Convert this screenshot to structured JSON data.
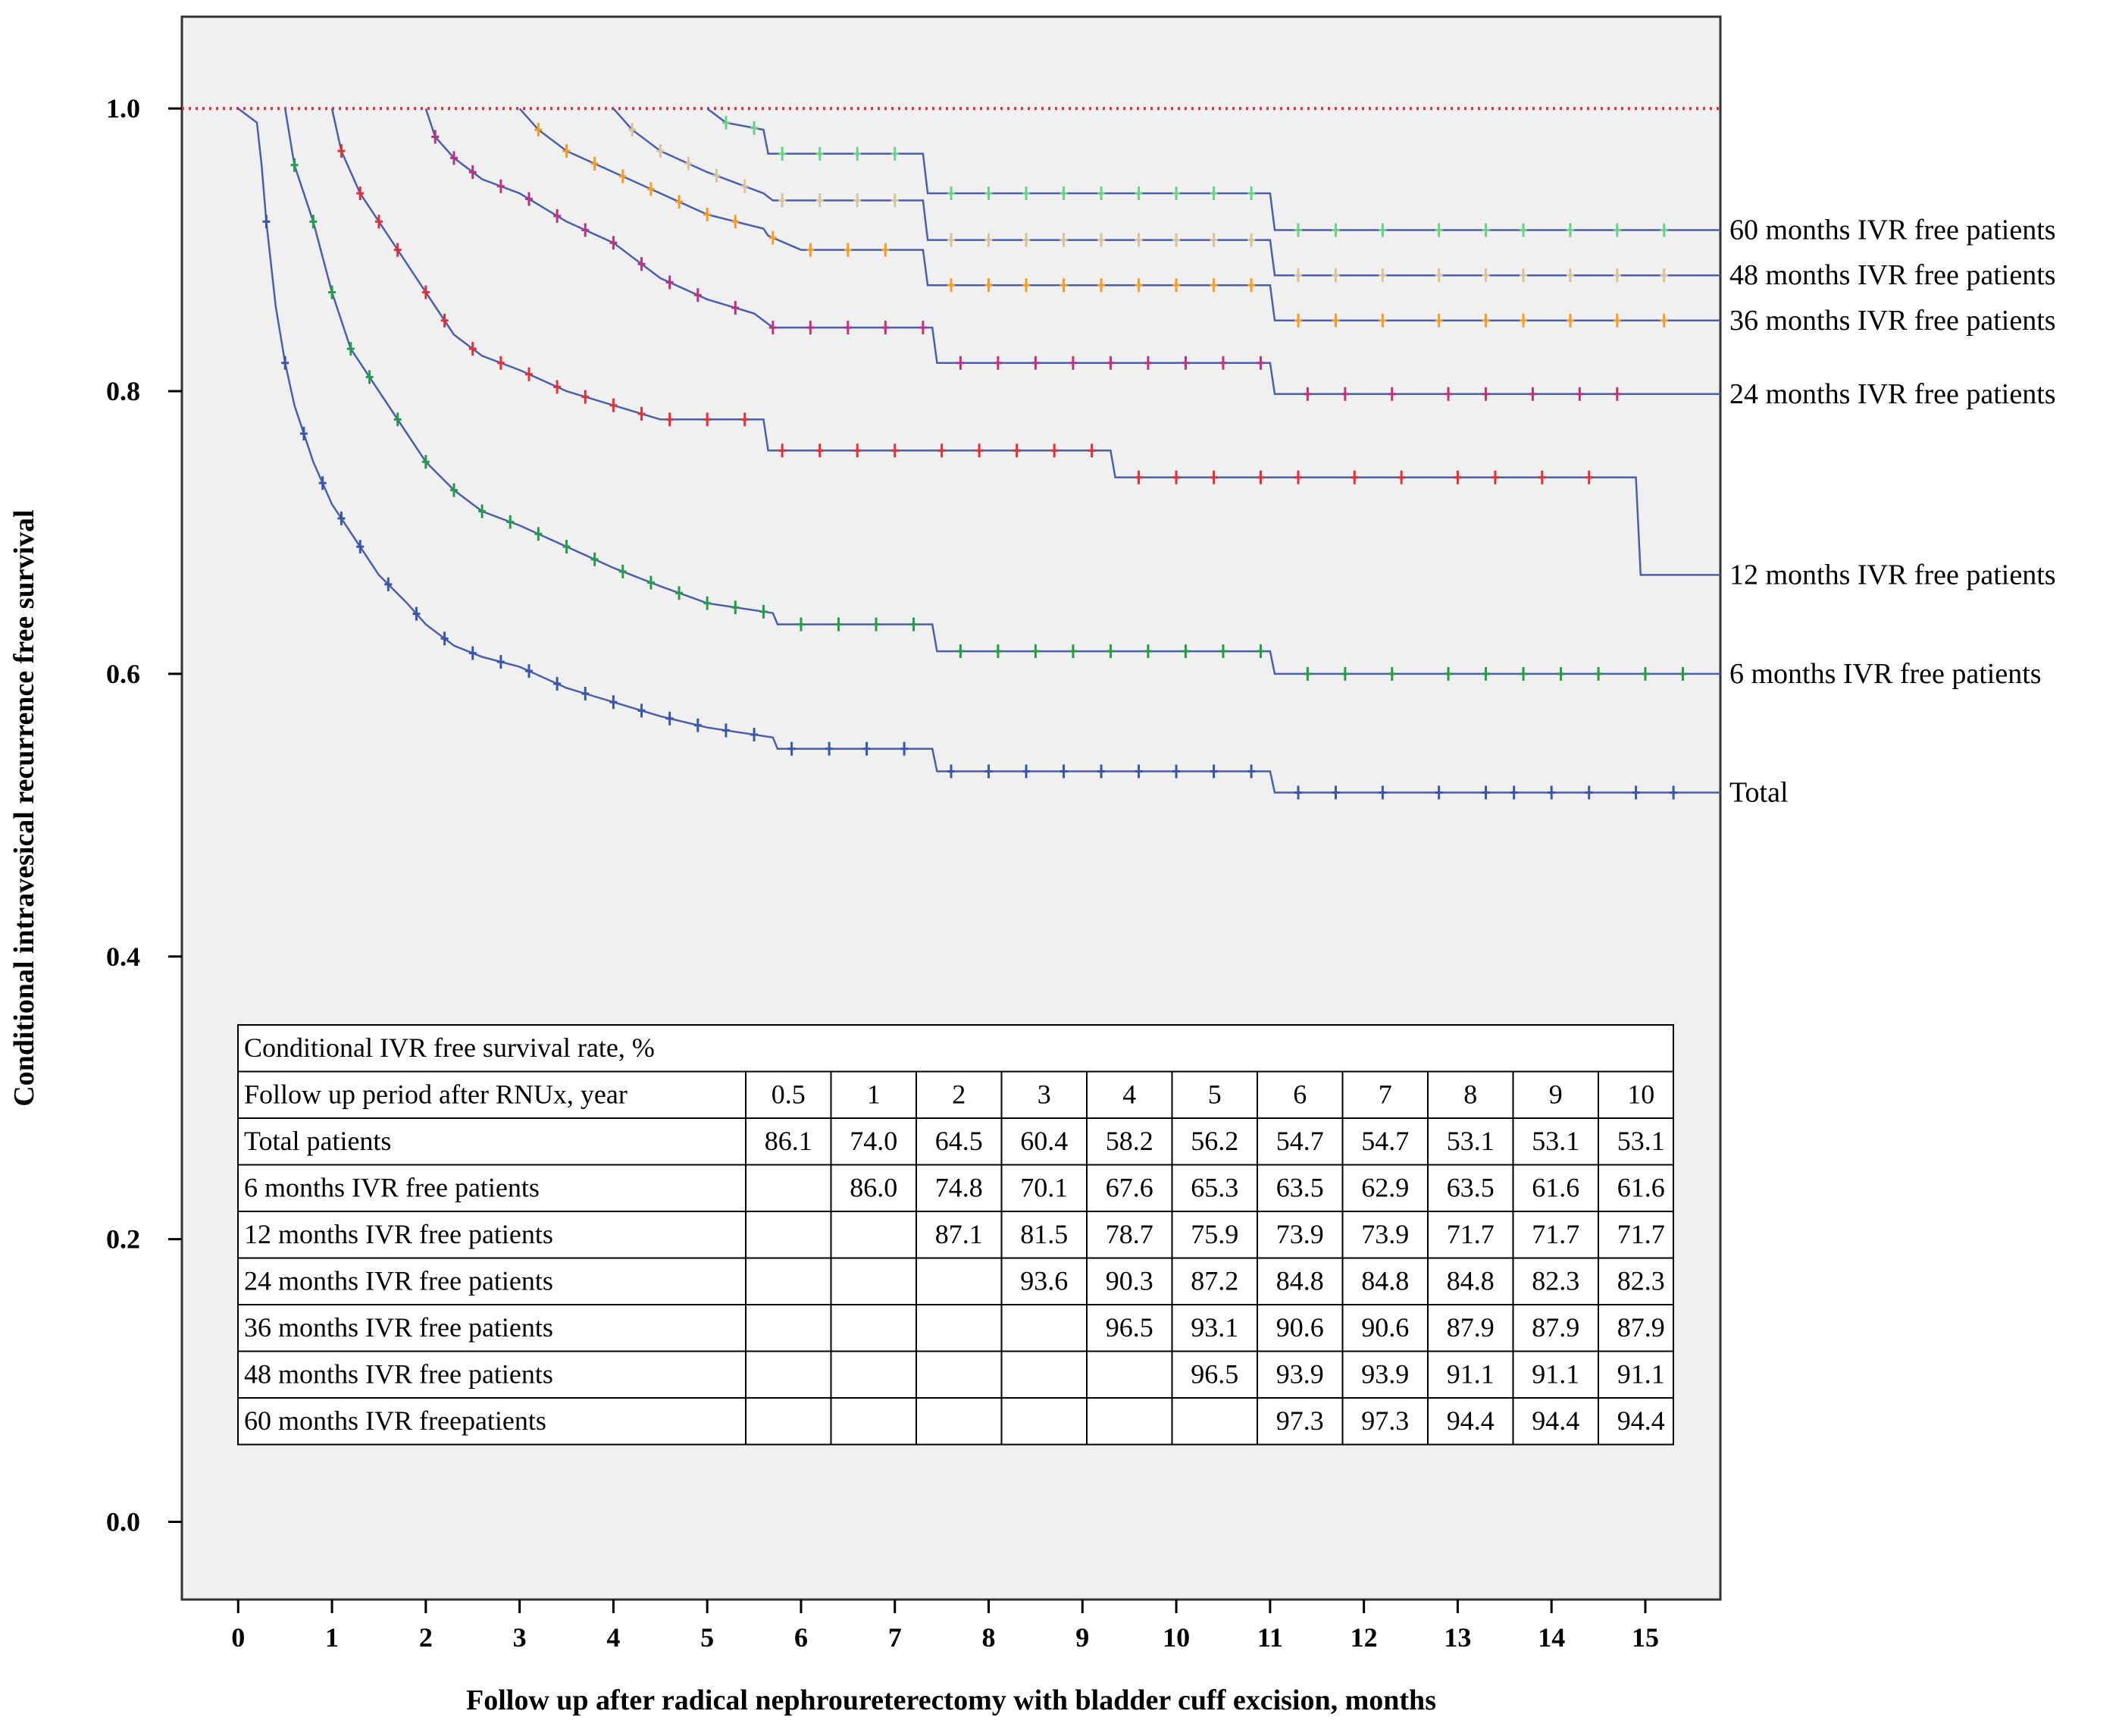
{
  "chart_data": {
    "type": "line",
    "xlabel": "Follow up after radical nephroureterectomy with bladder cuff excision, months",
    "ylabel": "Conditional intravesical recurrence free survival",
    "xlim": [
      -0.6,
      15.8
    ],
    "ylim": [
      -0.055,
      1.065
    ],
    "x_ticks": [
      0,
      1,
      2,
      3,
      4,
      5,
      6,
      7,
      8,
      9,
      10,
      11,
      12,
      13,
      14,
      15
    ],
    "x_tick_labels": [
      "0",
      "1",
      "2",
      "3",
      "4",
      "5",
      "6",
      "7",
      "8",
      "9",
      "10",
      "11",
      "12",
      "13",
      "14",
      "15"
    ],
    "y_ticks": [
      0.0,
      0.2,
      0.4,
      0.6,
      0.8,
      1.0
    ],
    "y_tick_labels": [
      "0.0",
      "0.2",
      "0.4",
      "0.6",
      "0.8",
      "1.0"
    ],
    "reference_line": {
      "y": 1.0,
      "style": "dotted",
      "color": "#e8303a"
    },
    "series": [
      {
        "name": "Total",
        "label": "Total",
        "color": "#3a56a8",
        "points": [
          [
            0,
            1.0
          ],
          [
            0.2,
            0.99
          ],
          [
            0.25,
            0.96
          ],
          [
            0.3,
            0.92
          ],
          [
            0.4,
            0.86
          ],
          [
            0.5,
            0.82
          ],
          [
            0.6,
            0.79
          ],
          [
            0.8,
            0.75
          ],
          [
            1.0,
            0.72
          ],
          [
            1.2,
            0.7
          ],
          [
            1.5,
            0.67
          ],
          [
            1.8,
            0.65
          ],
          [
            2.0,
            0.635
          ],
          [
            2.3,
            0.62
          ],
          [
            2.6,
            0.612
          ],
          [
            3.0,
            0.605
          ],
          [
            3.5,
            0.59
          ],
          [
            4.0,
            0.58
          ],
          [
            4.5,
            0.57
          ],
          [
            5.0,
            0.562
          ],
          [
            5.7,
            0.555
          ],
          [
            5.75,
            0.547
          ],
          [
            7.4,
            0.547
          ],
          [
            7.45,
            0.531
          ],
          [
            11.0,
            0.531
          ],
          [
            11.05,
            0.516
          ],
          [
            15.8,
            0.516
          ]
        ],
        "censor_x": [
          0.3,
          0.5,
          0.7,
          0.9,
          1.1,
          1.3,
          1.6,
          1.9,
          2.2,
          2.5,
          2.8,
          3.1,
          3.4,
          3.7,
          4.0,
          4.3,
          4.6,
          4.9,
          5.2,
          5.5,
          5.9,
          6.3,
          6.7,
          7.1,
          7.6,
          8.0,
          8.4,
          8.8,
          9.2,
          9.6,
          10.0,
          10.4,
          10.8,
          11.3,
          11.7,
          12.2,
          12.8,
          13.3,
          13.6,
          14.0,
          14.4,
          14.9,
          15.3
        ]
      },
      {
        "name": "6 months IVR free patients",
        "label": "6 months IVR free patients",
        "color": "#279a4c",
        "points": [
          [
            0.5,
            1.0
          ],
          [
            0.6,
            0.96
          ],
          [
            0.8,
            0.92
          ],
          [
            1.0,
            0.87
          ],
          [
            1.2,
            0.83
          ],
          [
            1.5,
            0.8
          ],
          [
            1.8,
            0.77
          ],
          [
            2.0,
            0.75
          ],
          [
            2.3,
            0.73
          ],
          [
            2.6,
            0.715
          ],
          [
            3.0,
            0.705
          ],
          [
            3.5,
            0.69
          ],
          [
            4.0,
            0.675
          ],
          [
            4.5,
            0.662
          ],
          [
            5.0,
            0.65
          ],
          [
            5.7,
            0.643
          ],
          [
            5.75,
            0.635
          ],
          [
            7.4,
            0.635
          ],
          [
            7.45,
            0.616
          ],
          [
            11.0,
            0.616
          ],
          [
            11.05,
            0.6
          ],
          [
            15.8,
            0.6
          ]
        ],
        "censor_x": [
          0.6,
          0.8,
          1.0,
          1.2,
          1.4,
          1.7,
          2.0,
          2.3,
          2.6,
          2.9,
          3.2,
          3.5,
          3.8,
          4.1,
          4.4,
          4.7,
          5.0,
          5.3,
          5.6,
          6.0,
          6.4,
          6.8,
          7.2,
          7.7,
          8.1,
          8.5,
          8.9,
          9.3,
          9.7,
          10.1,
          10.5,
          10.9,
          11.4,
          11.8,
          12.3,
          12.9,
          13.3,
          13.7,
          14.1,
          14.5,
          15.0,
          15.4
        ]
      },
      {
        "name": "12 months IVR free patients",
        "label": "12 months IVR free patients",
        "color": "#e0303a",
        "points": [
          [
            1.0,
            1.0
          ],
          [
            1.1,
            0.97
          ],
          [
            1.3,
            0.94
          ],
          [
            1.5,
            0.92
          ],
          [
            1.8,
            0.89
          ],
          [
            2.0,
            0.87
          ],
          [
            2.3,
            0.84
          ],
          [
            2.6,
            0.825
          ],
          [
            3.0,
            0.815
          ],
          [
            3.5,
            0.8
          ],
          [
            4.0,
            0.79
          ],
          [
            4.5,
            0.78
          ],
          [
            5.6,
            0.78
          ],
          [
            5.65,
            0.758
          ],
          [
            9.3,
            0.758
          ],
          [
            9.35,
            0.739
          ],
          [
            14.9,
            0.739
          ],
          [
            14.95,
            0.67
          ],
          [
            15.8,
            0.67
          ]
        ],
        "censor_x": [
          1.1,
          1.3,
          1.5,
          1.7,
          2.0,
          2.2,
          2.5,
          2.8,
          3.1,
          3.4,
          3.7,
          4.0,
          4.3,
          4.6,
          5.0,
          5.4,
          5.8,
          6.2,
          6.6,
          7.0,
          7.5,
          7.9,
          8.3,
          8.7,
          9.1,
          9.6,
          10.0,
          10.4,
          10.9,
          11.3,
          11.9,
          12.4,
          13.0,
          13.4,
          13.9,
          14.4
        ]
      },
      {
        "name": "24 months IVR free patients",
        "label": "24 months IVR free patients",
        "color": "#b8357e",
        "points": [
          [
            2.0,
            1.0
          ],
          [
            2.1,
            0.98
          ],
          [
            2.3,
            0.965
          ],
          [
            2.6,
            0.95
          ],
          [
            3.0,
            0.94
          ],
          [
            3.5,
            0.92
          ],
          [
            4.0,
            0.905
          ],
          [
            4.5,
            0.88
          ],
          [
            5.0,
            0.865
          ],
          [
            5.5,
            0.855
          ],
          [
            5.7,
            0.845
          ],
          [
            7.4,
            0.845
          ],
          [
            7.45,
            0.82
          ],
          [
            11.0,
            0.82
          ],
          [
            11.05,
            0.798
          ],
          [
            15.8,
            0.798
          ]
        ],
        "censor_x": [
          2.1,
          2.3,
          2.5,
          2.8,
          3.1,
          3.4,
          3.7,
          4.0,
          4.3,
          4.6,
          4.9,
          5.3,
          5.7,
          6.1,
          6.5,
          6.9,
          7.3,
          7.7,
          8.1,
          8.5,
          8.9,
          9.3,
          9.7,
          10.1,
          10.5,
          10.9,
          11.4,
          11.8,
          12.3,
          12.9,
          13.3,
          13.8,
          14.3,
          14.7
        ]
      },
      {
        "name": "36 months IVR free patients",
        "label": "36 months IVR free patients",
        "color": "#f39c2a",
        "points": [
          [
            3.0,
            1.0
          ],
          [
            3.2,
            0.985
          ],
          [
            3.5,
            0.97
          ],
          [
            4.0,
            0.955
          ],
          [
            4.5,
            0.94
          ],
          [
            5.0,
            0.925
          ],
          [
            5.6,
            0.915
          ],
          [
            5.65,
            0.91
          ],
          [
            6.0,
            0.9
          ],
          [
            7.3,
            0.9
          ],
          [
            7.35,
            0.875
          ],
          [
            11.0,
            0.875
          ],
          [
            11.05,
            0.85
          ],
          [
            15.8,
            0.85
          ]
        ],
        "censor_x": [
          3.2,
          3.5,
          3.8,
          4.1,
          4.4,
          4.7,
          5.0,
          5.3,
          5.7,
          6.1,
          6.5,
          6.9,
          7.6,
          8.0,
          8.4,
          8.8,
          9.2,
          9.6,
          10.0,
          10.4,
          10.8,
          11.3,
          11.7,
          12.2,
          12.8,
          13.3,
          13.7,
          14.2,
          14.7,
          15.2
        ]
      },
      {
        "name": "48 months IVR free patients",
        "label": "48 months IVR free patients",
        "color": "#d4c4a0",
        "points": [
          [
            4.0,
            1.0
          ],
          [
            4.2,
            0.985
          ],
          [
            4.5,
            0.97
          ],
          [
            5.0,
            0.955
          ],
          [
            5.6,
            0.94
          ],
          [
            5.7,
            0.935
          ],
          [
            7.3,
            0.935
          ],
          [
            7.35,
            0.907
          ],
          [
            11.0,
            0.907
          ],
          [
            11.05,
            0.882
          ],
          [
            15.8,
            0.882
          ]
        ],
        "censor_x": [
          4.2,
          4.5,
          4.8,
          5.1,
          5.4,
          5.8,
          6.2,
          6.6,
          7.0,
          7.6,
          8.0,
          8.4,
          8.8,
          9.2,
          9.6,
          10.0,
          10.4,
          10.8,
          11.3,
          11.7,
          12.2,
          12.8,
          13.3,
          13.7,
          14.2,
          14.7,
          15.2
        ]
      },
      {
        "name": "60 months IVR free patients",
        "label": "60 months IVR free patients",
        "color": "#6ad08a",
        "points": [
          [
            5.0,
            1.0
          ],
          [
            5.2,
            0.99
          ],
          [
            5.6,
            0.985
          ],
          [
            5.65,
            0.968
          ],
          [
            7.3,
            0.968
          ],
          [
            7.35,
            0.94
          ],
          [
            11.0,
            0.94
          ],
          [
            11.05,
            0.914
          ],
          [
            15.8,
            0.914
          ]
        ],
        "censor_x": [
          5.2,
          5.5,
          5.8,
          6.2,
          6.6,
          7.0,
          7.6,
          8.0,
          8.4,
          8.8,
          9.2,
          9.6,
          10.0,
          10.4,
          10.8,
          11.3,
          11.7,
          12.2,
          12.8,
          13.3,
          13.7,
          14.2,
          14.7,
          15.2
        ]
      }
    ],
    "series_label_y": [
      0.914,
      0.882,
      0.85,
      0.798,
      0.67,
      0.6,
      0.516
    ]
  },
  "table": {
    "title": "Conditional IVR free survival rate, %",
    "header_label": "Follow up period after RNUx, year",
    "years": [
      "0.5",
      "1",
      "2",
      "3",
      "4",
      "5",
      "6",
      "7",
      "8",
      "9",
      "10"
    ],
    "rows": [
      {
        "label": "Total patients",
        "values": [
          "86.1",
          "74.0",
          "64.5",
          "60.4",
          "58.2",
          "56.2",
          "54.7",
          "54.7",
          "53.1",
          "53.1",
          "53.1"
        ]
      },
      {
        "label": "6 months IVR free patients",
        "values": [
          "",
          "86.0",
          "74.8",
          "70.1",
          "67.6",
          "65.3",
          "63.5",
          "62.9",
          "63.5",
          "61.6",
          "61.6"
        ]
      },
      {
        "label": "12 months IVR free patients",
        "values": [
          "",
          "",
          "87.1",
          "81.5",
          "78.7",
          "75.9",
          "73.9",
          "73.9",
          "71.7",
          "71.7",
          "71.7"
        ]
      },
      {
        "label": "24 months IVR free patients",
        "values": [
          "",
          "",
          "",
          "93.6",
          "90.3",
          "87.2",
          "84.8",
          "84.8",
          "84.8",
          "82.3",
          "82.3"
        ]
      },
      {
        "label": "36 months IVR free patients",
        "values": [
          "",
          "",
          "",
          "",
          "96.5",
          "93.1",
          "90.6",
          "90.6",
          "87.9",
          "87.9",
          "87.9"
        ]
      },
      {
        "label": "48 months IVR free patients",
        "values": [
          "",
          "",
          "",
          "",
          "",
          "96.5",
          "93.9",
          "93.9",
          "91.1",
          "91.1",
          "91.1"
        ]
      },
      {
        "label": "60 months IVR freepatients",
        "values": [
          "",
          "",
          "",
          "",
          "",
          "",
          "97.3",
          "97.3",
          "94.4",
          "94.4",
          "94.4"
        ]
      }
    ]
  }
}
